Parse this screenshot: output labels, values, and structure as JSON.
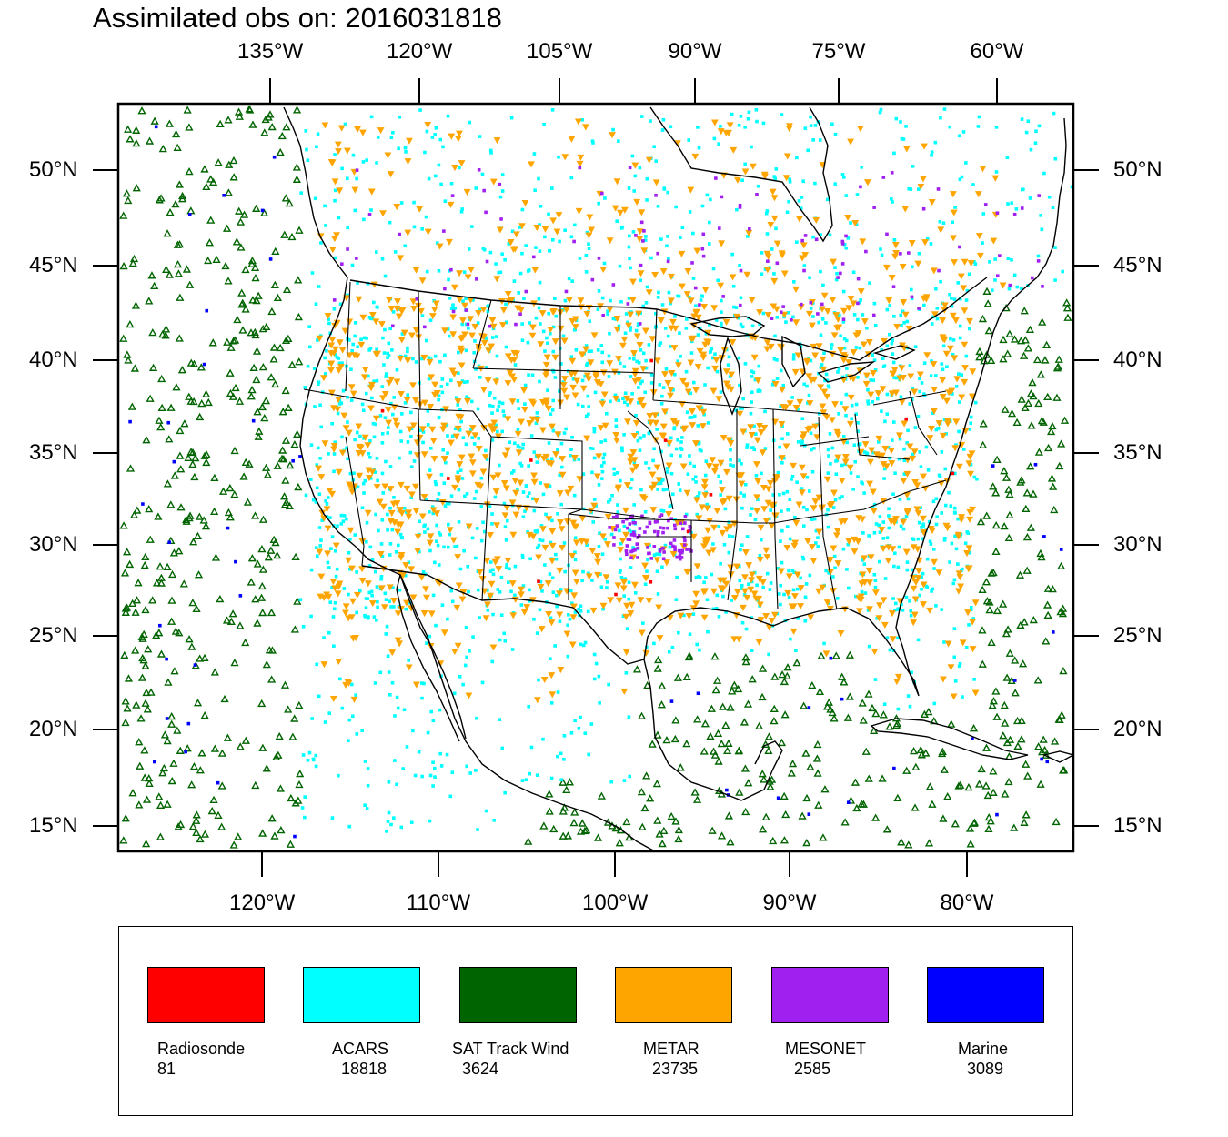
{
  "title": "Assimilated obs on: 2016031818",
  "map": {
    "top_lon_labels": [
      "135°W",
      "120°W",
      "105°W",
      "90°W",
      "75°W",
      "60°W"
    ],
    "bottom_lon_labels": [
      "120°W",
      "110°W",
      "100°W",
      "90°W",
      "80°W"
    ],
    "left_lat_labels": [
      "50°N",
      "45°N",
      "40°N",
      "35°N",
      "30°N",
      "25°N",
      "20°N",
      "15°N"
    ],
    "right_lat_labels": [
      "50°N",
      "45°N",
      "40°N",
      "35°N",
      "30°N",
      "25°N",
      "20°N",
      "15°N"
    ]
  },
  "legend": {
    "items": [
      {
        "name": "Radiosonde",
        "count": "81",
        "color": "#ff0000"
      },
      {
        "name": "ACARS",
        "count": "18818",
        "color": "#00ffff"
      },
      {
        "name": "SAT Track Wind",
        "count": "3624",
        "color": "#006400"
      },
      {
        "name": "METAR",
        "count": "23735",
        "color": "#ffa500"
      },
      {
        "name": "MESONET",
        "count": "2585",
        "color": "#a020f0"
      },
      {
        "name": "Marine",
        "count": "3089",
        "color": "#0000ff"
      }
    ]
  }
}
